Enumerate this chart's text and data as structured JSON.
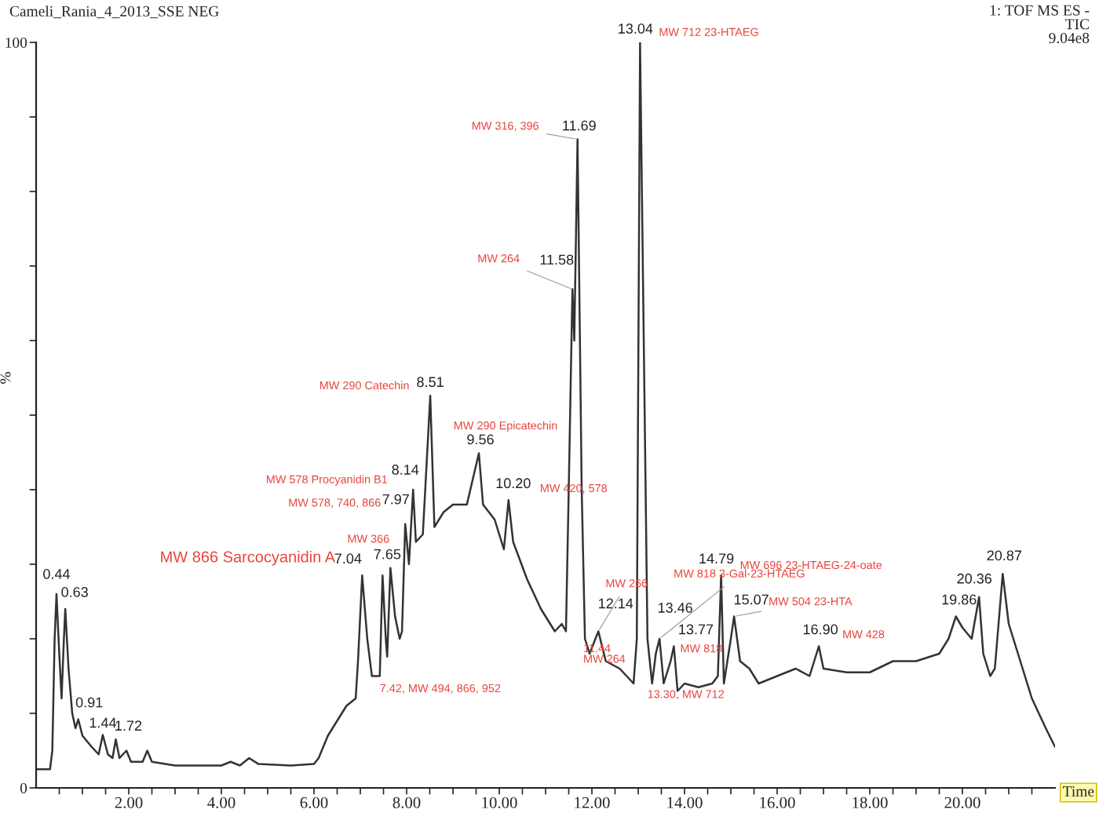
{
  "chart_data": {
    "type": "line",
    "title": "Cameli_Rania_4_2013_SSE NEG",
    "ylabel": "%",
    "xlabel": "Time",
    "x": [
      0,
      0.3,
      0.35,
      0.4,
      0.44,
      0.5,
      0.55,
      0.6,
      0.63,
      0.7,
      0.78,
      0.85,
      0.91,
      1.0,
      1.2,
      1.35,
      1.44,
      1.55,
      1.65,
      1.72,
      1.8,
      1.95,
      2.05,
      2.3,
      2.4,
      2.5,
      3.0,
      4.0,
      4.2,
      4.4,
      4.6,
      4.8,
      5.5,
      6.0,
      6.1,
      6.3,
      6.5,
      6.7,
      6.9,
      6.95,
      7.04,
      7.15,
      7.25,
      7.42,
      7.48,
      7.55,
      7.58,
      7.65,
      7.75,
      7.85,
      7.9,
      7.97,
      8.05,
      8.14,
      8.2,
      8.35,
      8.51,
      8.6,
      8.8,
      9.0,
      9.3,
      9.56,
      9.65,
      9.9,
      10.1,
      10.2,
      10.3,
      10.6,
      10.9,
      11.2,
      11.35,
      11.44,
      11.5,
      11.58,
      11.62,
      11.69,
      11.78,
      11.85,
      11.95,
      12.14,
      12.3,
      12.6,
      12.9,
      12.97,
      13.04,
      13.12,
      13.2,
      13.3,
      13.38,
      13.46,
      13.55,
      13.7,
      13.77,
      13.85,
      14.0,
      14.3,
      14.6,
      14.72,
      14.79,
      14.85,
      15.0,
      15.07,
      15.2,
      15.4,
      15.6,
      16.0,
      16.4,
      16.7,
      16.9,
      17.0,
      17.5,
      18.0,
      18.5,
      19.0,
      19.5,
      19.7,
      19.86,
      20.0,
      20.2,
      20.36,
      20.45,
      20.6,
      20.7,
      20.87,
      21.0,
      21.2,
      21.5,
      21.8,
      22.0
    ],
    "series": [
      {
        "color": "#333333",
        "values": [
          2.5,
          2.5,
          5,
          20,
          26,
          18,
          12,
          20,
          24,
          16,
          10,
          8,
          9.2,
          7,
          5.5,
          4.5,
          7.1,
          4.5,
          4,
          6.5,
          4,
          5,
          3.5,
          3.5,
          5,
          3.5,
          3,
          3,
          3.5,
          3,
          4,
          3.2,
          3,
          3.2,
          4,
          7,
          9,
          11,
          12,
          17,
          28.5,
          20,
          15,
          15,
          28.5,
          20,
          17.6,
          29.5,
          23,
          20,
          21,
          35.4,
          30,
          40,
          33,
          34,
          52.6,
          35,
          37,
          38,
          38,
          44.9,
          38,
          36,
          32,
          38.6,
          33,
          28,
          24,
          21,
          22,
          21,
          40,
          66.9,
          60,
          87,
          40,
          20,
          18,
          21,
          17,
          16,
          14,
          20,
          100,
          60,
          20,
          14,
          18,
          20,
          14,
          17,
          19,
          13,
          14,
          13.5,
          14,
          15,
          28.5,
          14,
          20,
          23,
          17,
          16,
          14,
          15,
          16,
          15,
          19,
          16,
          15.5,
          15.5,
          17,
          17,
          18,
          20,
          23,
          21.5,
          20,
          25.6,
          18,
          15,
          16,
          28.7,
          22,
          18,
          12,
          8,
          5.5
        ]
      }
    ],
    "xlim": [
      0,
      22
    ],
    "ylim": [
      0,
      100
    ],
    "xticks": [
      {
        "value": 0.5,
        "label": null
      },
      {
        "value": 1,
        "label": null
      },
      {
        "value": 1.5,
        "label": null
      },
      {
        "value": 2,
        "label": "2.00"
      },
      {
        "value": 2.5,
        "label": null
      },
      {
        "value": 3,
        "label": null
      },
      {
        "value": 3.5,
        "label": null
      },
      {
        "value": 4,
        "label": "4.00"
      },
      {
        "value": 4.5,
        "label": null
      },
      {
        "value": 5,
        "label": null
      },
      {
        "value": 5.5,
        "label": null
      },
      {
        "value": 6,
        "label": "6.00"
      },
      {
        "value": 6.5,
        "label": null
      },
      {
        "value": 7,
        "label": null
      },
      {
        "value": 7.5,
        "label": null
      },
      {
        "value": 8,
        "label": "8.00"
      },
      {
        "value": 8.5,
        "label": null
      },
      {
        "value": 9,
        "label": null
      },
      {
        "value": 9.5,
        "label": null
      },
      {
        "value": 10,
        "label": "10.00"
      },
      {
        "value": 10.5,
        "label": null
      },
      {
        "value": 11,
        "label": null
      },
      {
        "value": 11.5,
        "label": null
      },
      {
        "value": 12,
        "label": "12.00"
      },
      {
        "value": 12.5,
        "label": null
      },
      {
        "value": 13,
        "label": null
      },
      {
        "value": 13.5,
        "label": null
      },
      {
        "value": 14,
        "label": "14.00"
      },
      {
        "value": 14.5,
        "label": null
      },
      {
        "value": 15,
        "label": null
      },
      {
        "value": 15.5,
        "label": null
      },
      {
        "value": 16,
        "label": "16.00"
      },
      {
        "value": 16.5,
        "label": null
      },
      {
        "value": 17,
        "label": null
      },
      {
        "value": 17.5,
        "label": null
      },
      {
        "value": 18,
        "label": "18.00"
      },
      {
        "value": 18.5,
        "label": null
      },
      {
        "value": 19,
        "label": null
      },
      {
        "value": 19.5,
        "label": null
      },
      {
        "value": 20,
        "label": "20.00"
      },
      {
        "value": 20.5,
        "label": null
      },
      {
        "value": 21,
        "label": null
      },
      {
        "value": 21.5,
        "label": null
      }
    ],
    "yticks": [
      0,
      {
        "value": 10,
        "label": null
      },
      {
        "value": 20,
        "label": null
      },
      {
        "value": 30,
        "label": null
      },
      {
        "value": 40,
        "label": null
      },
      {
        "value": 50,
        "label": null
      },
      {
        "value": 60,
        "label": null
      },
      {
        "value": 70,
        "label": null
      },
      {
        "value": 80,
        "label": null
      },
      {
        "value": 90,
        "label": null
      },
      100
    ],
    "grid": false,
    "legend": false,
    "marker": "none",
    "line_style": "solid",
    "annotations": [
      {
        "text": "0.44",
        "x": 0.44,
        "y": 26
      },
      {
        "text": "0.63",
        "x": 0.63,
        "y": 24
      },
      {
        "text": "0.91",
        "x": 0.91,
        "y": 9.2
      },
      {
        "text": "1.44",
        "x": 1.44,
        "y": 7.1
      },
      {
        "text": "1.72",
        "x": 1.72,
        "y": 6.5
      },
      {
        "text": "7.04",
        "x": 7.04,
        "y": 28.5
      },
      {
        "text": "7.65",
        "x": 7.65,
        "y": 29.5
      },
      {
        "text": "7.97",
        "x": 7.97,
        "y": 35.4
      },
      {
        "text": "8.14",
        "x": 8.14,
        "y": 40
      },
      {
        "text": "8.51",
        "x": 8.51,
        "y": 52.6
      },
      {
        "text": "9.56",
        "x": 9.56,
        "y": 44.9
      },
      {
        "text": "10.20",
        "x": 10.2,
        "y": 38.6
      },
      {
        "text": "11.58",
        "x": 11.58,
        "y": 66.9
      },
      {
        "text": "11.69",
        "x": 11.69,
        "y": 87
      },
      {
        "text": "13.04",
        "x": 13.04,
        "y": 100
      },
      {
        "text": "12.14",
        "x": 12.14,
        "y": 21
      },
      {
        "text": "13.46",
        "x": 13.46,
        "y": 20
      },
      {
        "text": "13.77",
        "x": 13.77,
        "y": 19
      },
      {
        "text": "14.79",
        "x": 14.79,
        "y": 28.5
      },
      {
        "text": "15.07",
        "x": 15.07,
        "y": 23
      },
      {
        "text": "16.90",
        "x": 16.9,
        "y": 19
      },
      {
        "text": "19.86",
        "x": 19.86,
        "y": 23
      },
      {
        "text": "20.36",
        "x": 20.36,
        "y": 25.6
      },
      {
        "text": "20.87",
        "x": 20.87,
        "y": 28.7
      },
      {
        "text": "MW 290 Catechin",
        "x": 8.51,
        "y": 52.6
      },
      {
        "text": "MW 290 Epicatechin",
        "x": 9.56,
        "y": 44.9
      },
      {
        "text": "MW 578 Procyanidin B1",
        "x": 8.14,
        "y": 40
      },
      {
        "text": "MW 578, 740, 866",
        "x": 7.97,
        "y": 35.4
      },
      {
        "text": "MW 866 Sarcocyanidin A",
        "x": 7.04,
        "y": 28.5
      },
      {
        "text": "MW 366",
        "x": 7.65,
        "y": 29.5
      },
      {
        "text": "7.42, MW 494, 866, 952",
        "x": 7.42,
        "y": 15
      },
      {
        "text": "MW 420, 578",
        "x": 10.2,
        "y": 38.6
      },
      {
        "text": "MW 264",
        "x": 11.58,
        "y": 66.9
      },
      {
        "text": "MW 316, 396",
        "x": 11.69,
        "y": 87
      },
      {
        "text": "MW 712 23-HTAEG",
        "x": 13.04,
        "y": 100
      },
      {
        "text": "MW 266",
        "x": 12.14,
        "y": 21
      },
      {
        "text": "11.44\nMW 264",
        "x": 11.44,
        "y": 21
      },
      {
        "text": "MW 818 3-Gal-23-HTAEG",
        "x": 13.46,
        "y": 20
      },
      {
        "text": "MW 818",
        "x": 13.77,
        "y": 19
      },
      {
        "text": "13.30, MW 712",
        "x": 13.3,
        "y": 14
      },
      {
        "text": "MW 696 23-HTAEG-24-oate",
        "x": 14.79,
        "y": 28.5
      },
      {
        "text": "MW 504 23-HTA",
        "x": 15.07,
        "y": 23
      },
      {
        "text": "MW 428",
        "x": 16.9,
        "y": 19
      },
      "1: TOF MS ES -\nTIC\n9.04e8"
    ]
  }
}
